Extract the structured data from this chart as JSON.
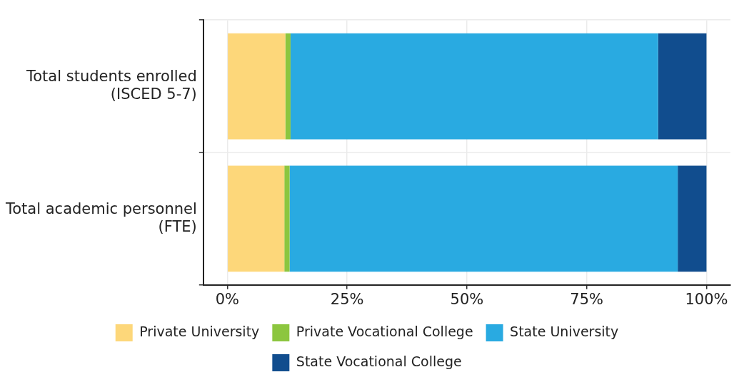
{
  "chart_data": {
    "type": "bar",
    "orientation": "horizontal",
    "stacked": true,
    "categories": [
      "Total students enrolled\n(ISCED 5-7)",
      "Total academic personnel\n(FTE)"
    ],
    "series": [
      {
        "name": "Private University",
        "color": "#fdd77a",
        "values": [
          12.1,
          11.9
        ]
      },
      {
        "name": "Private Vocational College",
        "color": "#8cc63f",
        "values": [
          1.1,
          1.1
        ]
      },
      {
        "name": "State University",
        "color": "#29aae1",
        "values": [
          76.7,
          81.0
        ]
      },
      {
        "name": "State Vocational College",
        "color": "#114d8e",
        "values": [
          10.1,
          6.0
        ]
      }
    ],
    "xlim": [
      -5,
      105
    ],
    "xticks": [
      {
        "value": 0,
        "label": "0%"
      },
      {
        "value": 25,
        "label": "25%"
      },
      {
        "value": 50,
        "label": "50%"
      },
      {
        "value": 75,
        "label": "75%"
      },
      {
        "value": 100,
        "label": "100%"
      }
    ],
    "grid": true,
    "legend": "bottom"
  }
}
